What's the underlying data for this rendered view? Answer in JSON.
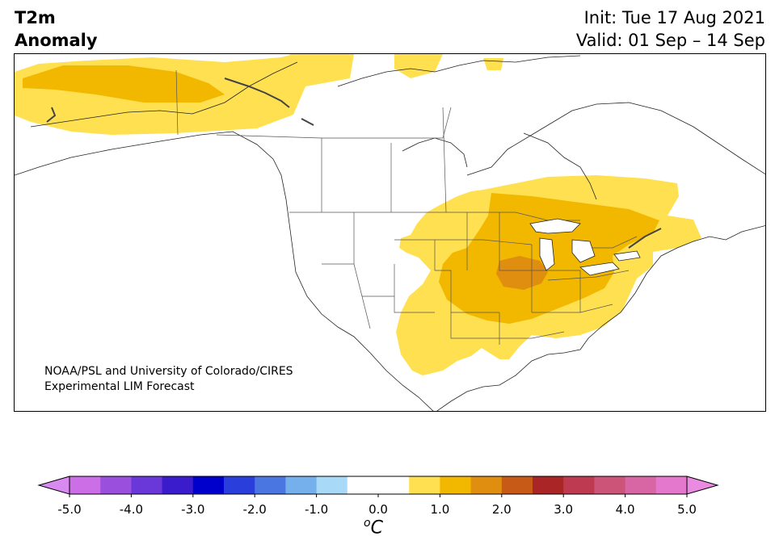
{
  "title": {
    "line1": "T2m",
    "line2": "Anomaly"
  },
  "forecast": {
    "init": "Init: Tue 17 Aug 2021",
    "valid": "Valid: 01 Sep – 14 Sep"
  },
  "credit": {
    "line1": "NOAA/PSL and University of Colorado/CIRES",
    "line2": "Experimental LIM Forecast"
  },
  "colorbar": {
    "unit_sup": "o",
    "unit_main": "C",
    "ticks": [
      "-5.0",
      "-4.0",
      "-3.0",
      "-2.0",
      "-1.0",
      "0.0",
      "1.0",
      "2.0",
      "3.0",
      "4.0",
      "5.0"
    ],
    "colors": [
      "#cc6ee6",
      "#9a50dc",
      "#6a38d8",
      "#3a1ccc",
      "#0000cc",
      "#2a3edc",
      "#4a76e2",
      "#76b0ec",
      "#a8daf8",
      "#ffffff",
      "#ffffff",
      "#ffe050",
      "#f2b800",
      "#e08e10",
      "#c85a18",
      "#aa2626",
      "#be3a50",
      "#cc5478",
      "#d866a4",
      "#e478cc"
    ],
    "under_color": "#d88af0",
    "over_color": "#ea8ae0"
  },
  "legend_colors": {
    "anomaly_0_5_to_1": "#ffe050",
    "anomaly_1_to_1_5": "#f2b800",
    "anomaly_1_5_to_2": "#e08e10"
  }
}
